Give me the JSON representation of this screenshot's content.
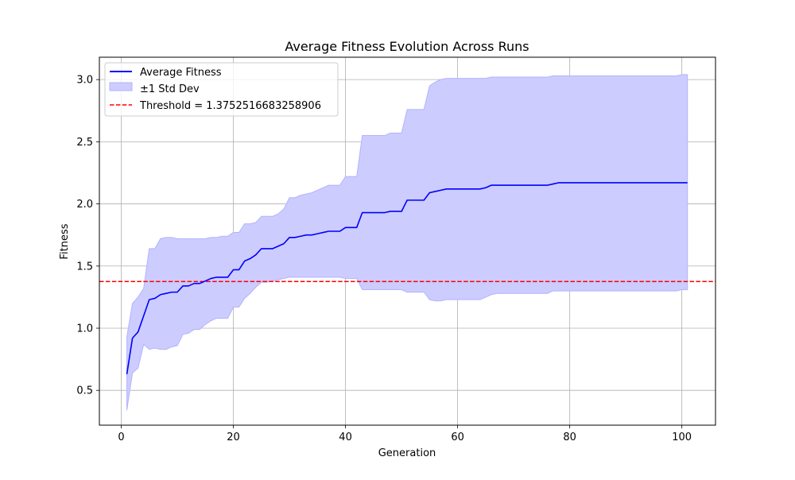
{
  "colors": {
    "mean_line": "#0000ff",
    "band_fill": "#ccccff",
    "band_edge": "#b3b3ff",
    "threshold": "#ff0000",
    "grid": "#b0b0b0",
    "axes": "#000000"
  },
  "chart_data": {
    "type": "line",
    "title": "Average Fitness Evolution Across Runs",
    "xlabel": "Generation",
    "ylabel": "Fitness",
    "xlim": [
      -3.9,
      106.0
    ],
    "ylim": [
      0.22,
      3.18
    ],
    "xticks": [
      0,
      20,
      40,
      60,
      80,
      100
    ],
    "yticks": [
      0.5,
      1.0,
      1.5,
      2.0,
      2.5,
      3.0
    ],
    "xtick_labels": [
      "0",
      "20",
      "40",
      "60",
      "80",
      "100"
    ],
    "ytick_labels": [
      "0.5",
      "1.0",
      "1.5",
      "2.0",
      "2.5",
      "3.0"
    ],
    "grid": true,
    "legend_position": "top-left",
    "legend": {
      "mean": "Average Fitness",
      "band": "±1 Std Dev",
      "threshold": "Threshold = 1.3752516683258906"
    },
    "threshold": 1.3752516683258906,
    "x": [
      1,
      2,
      3,
      4,
      5,
      6,
      7,
      8,
      9,
      10,
      11,
      12,
      13,
      14,
      15,
      16,
      17,
      18,
      19,
      20,
      21,
      22,
      23,
      24,
      25,
      26,
      27,
      28,
      29,
      30,
      31,
      32,
      33,
      34,
      35,
      36,
      37,
      38,
      39,
      40,
      41,
      42,
      43,
      44,
      45,
      46,
      47,
      48,
      49,
      50,
      51,
      52,
      53,
      54,
      55,
      56,
      57,
      58,
      59,
      60,
      61,
      62,
      63,
      64,
      65,
      66,
      67,
      68,
      69,
      70,
      71,
      72,
      73,
      74,
      75,
      76,
      77,
      78,
      79,
      80,
      81,
      82,
      83,
      84,
      85,
      86,
      87,
      88,
      89,
      90,
      91,
      92,
      93,
      94,
      95,
      96,
      97,
      98,
      99,
      100,
      101
    ],
    "series": [
      {
        "name": "Average Fitness",
        "values": [
          0.63,
          0.92,
          0.97,
          1.1,
          1.23,
          1.24,
          1.27,
          1.28,
          1.29,
          1.29,
          1.34,
          1.34,
          1.36,
          1.36,
          1.38,
          1.4,
          1.41,
          1.41,
          1.41,
          1.47,
          1.47,
          1.54,
          1.56,
          1.59,
          1.64,
          1.64,
          1.64,
          1.66,
          1.68,
          1.73,
          1.73,
          1.74,
          1.75,
          1.75,
          1.76,
          1.77,
          1.78,
          1.78,
          1.78,
          1.81,
          1.81,
          1.81,
          1.93,
          1.93,
          1.93,
          1.93,
          1.93,
          1.94,
          1.94,
          1.94,
          2.03,
          2.03,
          2.03,
          2.03,
          2.09,
          2.1,
          2.11,
          2.12,
          2.12,
          2.12,
          2.12,
          2.12,
          2.12,
          2.12,
          2.13,
          2.15,
          2.15,
          2.15,
          2.15,
          2.15,
          2.15,
          2.15,
          2.15,
          2.15,
          2.15,
          2.15,
          2.16,
          2.17,
          2.17,
          2.17,
          2.17,
          2.17,
          2.17,
          2.17,
          2.17,
          2.17,
          2.17,
          2.17,
          2.17,
          2.17,
          2.17,
          2.17,
          2.17,
          2.17,
          2.17,
          2.17,
          2.17,
          2.17,
          2.17,
          2.17,
          2.17
        ]
      },
      {
        "name": "±1 Std Dev upper",
        "values": [
          0.93,
          1.2,
          1.25,
          1.32,
          1.64,
          1.64,
          1.72,
          1.73,
          1.73,
          1.72,
          1.72,
          1.72,
          1.72,
          1.72,
          1.72,
          1.73,
          1.73,
          1.74,
          1.74,
          1.77,
          1.77,
          1.84,
          1.84,
          1.85,
          1.9,
          1.9,
          1.9,
          1.92,
          1.96,
          2.05,
          2.05,
          2.07,
          2.08,
          2.09,
          2.11,
          2.13,
          2.15,
          2.15,
          2.15,
          2.22,
          2.22,
          2.22,
          2.55,
          2.55,
          2.55,
          2.55,
          2.55,
          2.57,
          2.57,
          2.57,
          2.76,
          2.76,
          2.76,
          2.76,
          2.95,
          2.98,
          3.0,
          3.01,
          3.01,
          3.01,
          3.01,
          3.01,
          3.01,
          3.01,
          3.01,
          3.02,
          3.02,
          3.02,
          3.02,
          3.02,
          3.02,
          3.02,
          3.02,
          3.02,
          3.02,
          3.02,
          3.03,
          3.03,
          3.03,
          3.03,
          3.03,
          3.03,
          3.03,
          3.03,
          3.03,
          3.03,
          3.03,
          3.03,
          3.03,
          3.03,
          3.03,
          3.03,
          3.03,
          3.03,
          3.03,
          3.03,
          3.03,
          3.03,
          3.03,
          3.04,
          3.04
        ]
      },
      {
        "name": "±1 Std Dev lower",
        "values": [
          0.34,
          0.64,
          0.68,
          0.87,
          0.83,
          0.84,
          0.83,
          0.83,
          0.85,
          0.86,
          0.95,
          0.96,
          0.99,
          0.99,
          1.03,
          1.06,
          1.08,
          1.08,
          1.08,
          1.17,
          1.17,
          1.24,
          1.28,
          1.33,
          1.37,
          1.37,
          1.38,
          1.39,
          1.4,
          1.41,
          1.41,
          1.41,
          1.41,
          1.41,
          1.41,
          1.41,
          1.41,
          1.41,
          1.41,
          1.4,
          1.4,
          1.4,
          1.31,
          1.31,
          1.31,
          1.31,
          1.31,
          1.31,
          1.31,
          1.31,
          1.29,
          1.29,
          1.29,
          1.29,
          1.23,
          1.22,
          1.22,
          1.23,
          1.23,
          1.23,
          1.23,
          1.23,
          1.23,
          1.23,
          1.25,
          1.27,
          1.28,
          1.28,
          1.28,
          1.28,
          1.28,
          1.28,
          1.28,
          1.28,
          1.28,
          1.28,
          1.3,
          1.3,
          1.3,
          1.3,
          1.3,
          1.3,
          1.3,
          1.3,
          1.3,
          1.3,
          1.3,
          1.3,
          1.3,
          1.3,
          1.3,
          1.3,
          1.3,
          1.3,
          1.3,
          1.3,
          1.3,
          1.3,
          1.3,
          1.31,
          1.31
        ]
      }
    ]
  }
}
